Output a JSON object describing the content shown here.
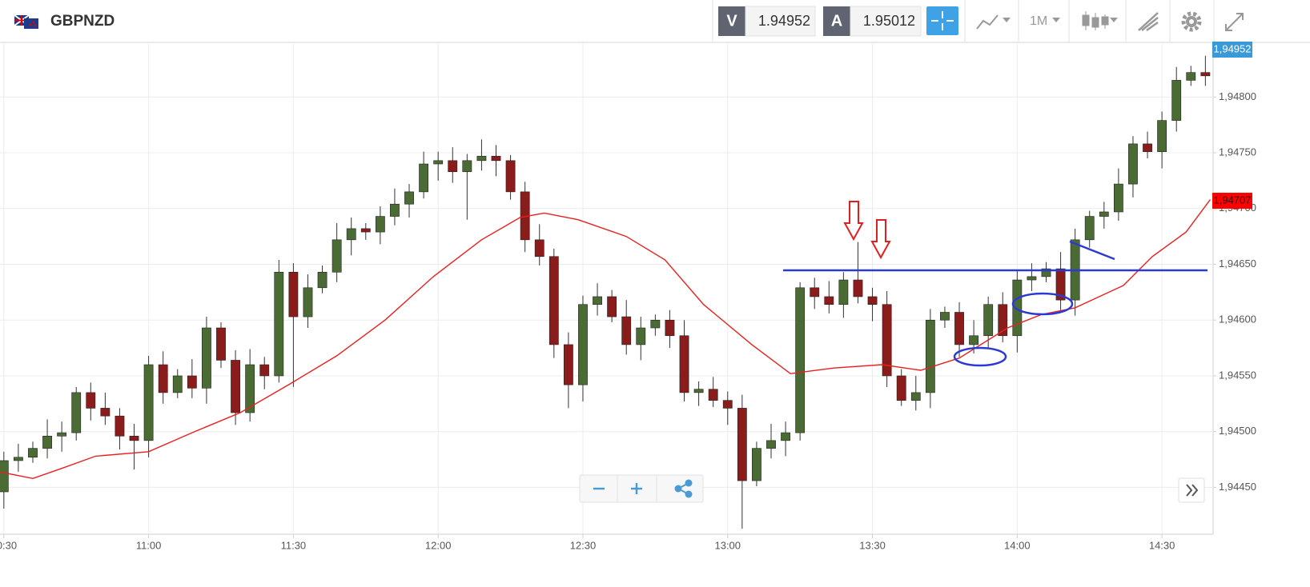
{
  "toolbar": {
    "symbol": "GBPNZD",
    "bid_tag": "V",
    "bid": "1.94952",
    "ask_tag": "A",
    "ask": "1.95012",
    "timeframe": "1M"
  },
  "chart_data": {
    "type": "candlestick",
    "x": [
      630,
      633,
      636,
      639,
      642,
      645,
      648,
      651,
      654,
      657,
      660,
      663,
      666,
      669,
      672,
      675,
      678,
      681,
      684,
      687,
      690,
      693,
      696,
      699,
      702,
      705,
      708,
      711,
      714,
      717,
      720,
      723,
      726,
      729,
      732,
      735,
      738,
      741,
      744,
      747,
      750,
      753,
      756,
      759,
      762,
      765,
      768,
      771,
      774,
      777,
      780,
      783,
      786,
      789,
      792,
      795,
      798,
      801,
      804,
      807,
      810,
      813,
      816,
      819,
      822,
      825,
      828,
      831,
      834,
      837,
      840,
      843,
      846,
      849,
      852,
      855,
      858,
      861,
      864,
      867,
      870,
      873,
      876,
      879
    ],
    "open": [
      1.94446,
      1.94474,
      1.94477,
      1.94485,
      1.94496,
      1.94499,
      1.94535,
      1.94521,
      1.94514,
      1.94496,
      1.94492,
      1.9456,
      1.94535,
      1.9455,
      1.94539,
      1.94593,
      1.94564,
      1.94517,
      1.9456,
      1.9455,
      1.94643,
      1.94603,
      1.94629,
      1.94643,
      1.94672,
      1.94682,
      1.94679,
      1.94693,
      1.94704,
      1.94715,
      1.9474,
      1.94743,
      1.94733,
      1.94743,
      1.94747,
      1.94743,
      1.94715,
      1.94672,
      1.94657,
      1.94578,
      1.94542,
      1.94614,
      1.94621,
      1.94603,
      1.94578,
      1.94593,
      1.946,
      1.94586,
      1.94535,
      1.94538,
      1.94528,
      1.94521,
      1.94456,
      1.94485,
      1.94492,
      1.94499,
      1.94629,
      1.94621,
      1.94614,
      1.94636,
      1.94621,
      1.94614,
      1.9455,
      1.94528,
      1.94535,
      1.946,
      1.94607,
      1.94578,
      1.94586,
      1.94614,
      1.94586,
      1.94636,
      1.94639,
      1.94646,
      1.94618,
      1.94672,
      1.94693,
      1.94697,
      1.94722,
      1.94758,
      1.94751,
      1.94779,
      1.94815,
      1.94822
    ],
    "high": [
      1.94482,
      1.94489,
      1.94491,
      1.94511,
      1.94509,
      1.9454,
      1.94544,
      1.94535,
      1.94521,
      1.94507,
      1.94568,
      1.94572,
      1.94556,
      1.94565,
      1.94603,
      1.94598,
      1.94573,
      1.94574,
      1.94567,
      1.94654,
      1.94651,
      1.94641,
      1.94649,
      1.94687,
      1.94692,
      1.94687,
      1.94702,
      1.94718,
      1.94722,
      1.94751,
      1.94751,
      1.94755,
      1.94749,
      1.94762,
      1.94757,
      1.94748,
      1.94724,
      1.94686,
      1.94664,
      1.94589,
      1.94622,
      1.94633,
      1.94627,
      1.94618,
      1.94603,
      1.94605,
      1.94609,
      1.946,
      1.94545,
      1.94549,
      1.94536,
      1.94533,
      1.94491,
      1.94507,
      1.94509,
      1.94634,
      1.94638,
      1.94635,
      1.94643,
      1.9467,
      1.94629,
      1.94626,
      1.94556,
      1.9455,
      1.9461,
      1.94612,
      1.94616,
      1.946,
      1.94621,
      1.94625,
      1.94644,
      1.94651,
      1.94652,
      1.94661,
      1.94682,
      1.94698,
      1.94706,
      1.94736,
      1.94765,
      1.94769,
      1.94787,
      1.94827,
      1.94828,
      1.94837
    ],
    "low": [
      1.94431,
      1.94464,
      1.94472,
      1.94476,
      1.94482,
      1.94492,
      1.9451,
      1.94506,
      1.94484,
      1.94466,
      1.94477,
      1.94525,
      1.9453,
      1.9453,
      1.94525,
      1.94557,
      1.94506,
      1.94509,
      1.94538,
      1.94544,
      1.9454,
      1.94593,
      1.94624,
      1.94634,
      1.94658,
      1.94672,
      1.94668,
      1.94685,
      1.94692,
      1.94709,
      1.94725,
      1.94723,
      1.9469,
      1.94734,
      1.94729,
      1.94708,
      1.94661,
      1.94649,
      1.94566,
      1.94521,
      1.94527,
      1.94604,
      1.94598,
      1.94569,
      1.94564,
      1.94586,
      1.94575,
      1.94527,
      1.94523,
      1.94522,
      1.94506,
      1.94413,
      1.94451,
      1.94476,
      1.94478,
      1.94492,
      1.9461,
      1.94606,
      1.94602,
      1.94615,
      1.94599,
      1.9454,
      1.94523,
      1.94519,
      1.94521,
      1.94593,
      1.94567,
      1.9457,
      1.94574,
      1.9458,
      1.94571,
      1.94626,
      1.94634,
      1.94609,
      1.94604,
      1.94665,
      1.94682,
      1.94689,
      1.9471,
      1.94745,
      1.94736,
      1.94769,
      1.9481,
      1.9481
    ],
    "close": [
      1.94474,
      1.94477,
      1.94485,
      1.94496,
      1.94499,
      1.94535,
      1.94521,
      1.94514,
      1.94496,
      1.94492,
      1.9456,
      1.94535,
      1.9455,
      1.94539,
      1.94593,
      1.94564,
      1.94517,
      1.9456,
      1.9455,
      1.94643,
      1.94603,
      1.94629,
      1.94643,
      1.94672,
      1.94682,
      1.94679,
      1.94693,
      1.94704,
      1.94715,
      1.9474,
      1.94743,
      1.94733,
      1.94743,
      1.94747,
      1.94743,
      1.94715,
      1.94672,
      1.94657,
      1.94578,
      1.94542,
      1.94614,
      1.94621,
      1.94603,
      1.94578,
      1.94593,
      1.946,
      1.94586,
      1.94535,
      1.94538,
      1.94528,
      1.94521,
      1.94456,
      1.94485,
      1.94492,
      1.94499,
      1.94629,
      1.94621,
      1.94614,
      1.94636,
      1.94621,
      1.94614,
      1.9455,
      1.94528,
      1.94535,
      1.946,
      1.94607,
      1.94578,
      1.94586,
      1.94614,
      1.94586,
      1.94636,
      1.94639,
      1.94646,
      1.94618,
      1.94672,
      1.94693,
      1.94697,
      1.94722,
      1.94758,
      1.94751,
      1.94779,
      1.94815,
      1.94822,
      1.94819
    ],
    "up_color": "#4b6b35",
    "down_color": "#8a1c1c",
    "series": [
      {
        "color": "#e8211f",
        "x": [
          629,
          636,
          642,
          649,
          660,
          669,
          679,
          689,
          699,
          709,
          719,
          729,
          737,
          742,
          749,
          759,
          767,
          775,
          785,
          793,
          802,
          812,
          820,
          828,
          838,
          845,
          852,
          862,
          868,
          875,
          880
        ],
        "values": [
          1.94464,
          1.94458,
          1.94467,
          1.94478,
          1.94482,
          1.94499,
          1.94517,
          1.94542,
          1.94568,
          1.946,
          1.94639,
          1.94672,
          1.94692,
          1.94696,
          1.9469,
          1.94675,
          1.94654,
          1.94614,
          1.94578,
          1.94552,
          1.94557,
          1.9456,
          1.94555,
          1.94566,
          1.94593,
          1.94605,
          1.94611,
          1.94631,
          1.94657,
          1.94679,
          1.94708
        ]
      }
    ],
    "xlim": [
      629.2,
      880.6
    ],
    "ylim": [
      1.94408,
      1.94849
    ],
    "xticks": [
      {
        "value": 630,
        "label": "10:30"
      },
      {
        "value": 660,
        "label": "11:00"
      },
      {
        "value": 690,
        "label": "11:30"
      },
      {
        "value": 720,
        "label": "12:00"
      },
      {
        "value": 750,
        "label": "12:30"
      },
      {
        "value": 780,
        "label": "13:00"
      },
      {
        "value": 810,
        "label": "13:30"
      },
      {
        "value": 840,
        "label": "14:00"
      },
      {
        "value": 870,
        "label": "14:30"
      }
    ],
    "yticks": [
      {
        "value": 1.9445,
        "label": "1,94450"
      },
      {
        "value": 1.945,
        "label": "1,94500"
      },
      {
        "value": 1.9455,
        "label": "1,94550"
      },
      {
        "value": 1.946,
        "label": "1,94600"
      },
      {
        "value": 1.9465,
        "label": "1,94650"
      },
      {
        "value": 1.947,
        "label": "1,94700"
      },
      {
        "value": 1.9475,
        "label": "1,94750"
      },
      {
        "value": 1.948,
        "label": "1,94800"
      }
    ],
    "grid": true,
    "last_price_label": "1,94952",
    "last_price_color": "#3a9ad9",
    "ma_label": {
      "value": 1.94707,
      "label": "1,94707"
    },
    "ma_label_color": "#ff0000"
  }
}
